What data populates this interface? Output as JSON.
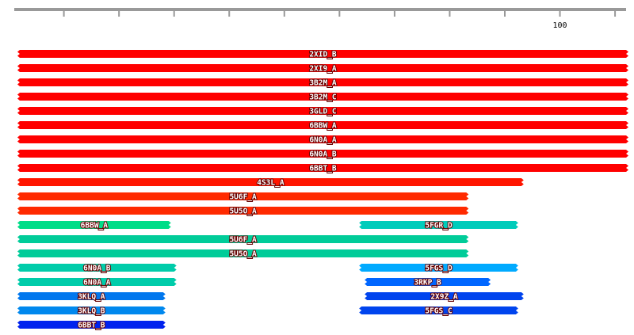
{
  "chart_data": {
    "type": "range",
    "xlim": [
      1,
      112
    ],
    "xticks": [
      {
        "value": 10,
        "label": null
      },
      {
        "value": 20,
        "label": null
      },
      {
        "value": 30,
        "label": null
      },
      {
        "value": 40,
        "label": null
      },
      {
        "value": 50,
        "label": null
      },
      {
        "value": 60,
        "label": null
      },
      {
        "value": 70,
        "label": null
      },
      {
        "value": 80,
        "label": null
      },
      {
        "value": 90,
        "label": null
      },
      100,
      {
        "value": 110,
        "label": null
      }
    ],
    "rows": [
      [
        {
          "name": "2XID_B",
          "start": 2,
          "end": 112,
          "color": "#ff0000"
        }
      ],
      [
        {
          "name": "2XI9_A",
          "start": 2,
          "end": 112,
          "color": "#ff0000"
        }
      ],
      [
        {
          "name": "3B2M_A",
          "start": 2,
          "end": 112,
          "color": "#ff0000"
        }
      ],
      [
        {
          "name": "3B2M_C",
          "start": 2,
          "end": 112,
          "color": "#ff0000"
        }
      ],
      [
        {
          "name": "3GLD_C",
          "start": 2,
          "end": 112,
          "color": "#ff0000"
        }
      ],
      [
        {
          "name": "6BBW_A",
          "start": 2,
          "end": 112,
          "color": "#ff0000"
        }
      ],
      [
        {
          "name": "6N0A_A",
          "start": 2,
          "end": 112,
          "color": "#ff0000"
        }
      ],
      [
        {
          "name": "6N0A_B",
          "start": 2,
          "end": 112,
          "color": "#ff0000"
        }
      ],
      [
        {
          "name": "6BBT_B",
          "start": 2,
          "end": 112,
          "color": "#ff0000"
        }
      ],
      [
        {
          "name": "4S3L_A",
          "start": 2,
          "end": 93,
          "color": "#ff1500"
        }
      ],
      [
        {
          "name": "5U6F_A",
          "start": 2,
          "end": 83,
          "color": "#ff2a00"
        }
      ],
      [
        {
          "name": "5U5O_A",
          "start": 2,
          "end": 83,
          "color": "#ff2a00"
        }
      ],
      [
        {
          "name": "6BBW_A",
          "start": 2,
          "end": 29,
          "color": "#00dd88"
        },
        {
          "name": "5FGR_D",
          "start": 64,
          "end": 92,
          "color": "#00ccbb"
        }
      ],
      [
        {
          "name": "5U6F_A",
          "start": 2,
          "end": 83,
          "color": "#00cc99"
        }
      ],
      [
        {
          "name": "5U5O_A",
          "start": 2,
          "end": 83,
          "color": "#00cc99"
        }
      ],
      [
        {
          "name": "6N0A_B",
          "start": 2,
          "end": 30,
          "color": "#00ccaa"
        },
        {
          "name": "5FGS_D",
          "start": 64,
          "end": 92,
          "color": "#00aaff"
        }
      ],
      [
        {
          "name": "6N0A_A",
          "start": 2,
          "end": 30,
          "color": "#00ccaa"
        },
        {
          "name": "3RKP_B",
          "start": 65,
          "end": 87,
          "color": "#0066ff"
        }
      ],
      [
        {
          "name": "3KLQ_A",
          "start": 2,
          "end": 28,
          "color": "#0077ee"
        },
        {
          "name": "2X9Z_A",
          "start": 65,
          "end": 93,
          "color": "#0044ee"
        }
      ],
      [
        {
          "name": "3KLQ_B",
          "start": 2,
          "end": 28,
          "color": "#0088ee"
        },
        {
          "name": "5FGS_C",
          "start": 64,
          "end": 92,
          "color": "#0044ee"
        }
      ],
      [
        {
          "name": "6BBT_B",
          "start": 2,
          "end": 28,
          "color": "#0022ee"
        }
      ]
    ]
  }
}
